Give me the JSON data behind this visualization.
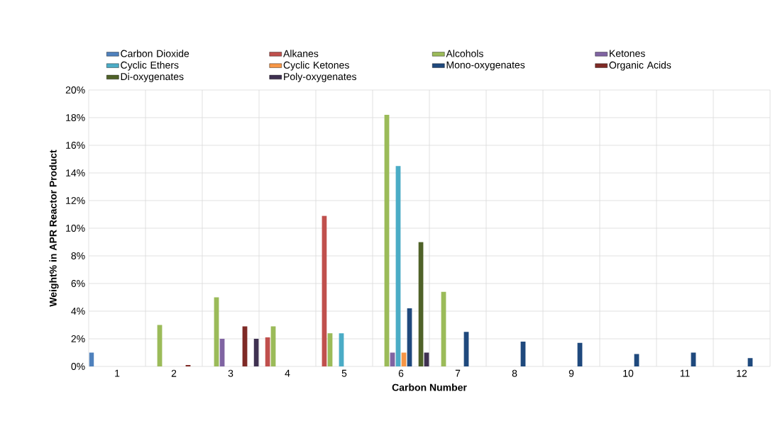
{
  "chart_data": {
    "type": "bar",
    "xlabel": "Carbon Number",
    "ylabel": "Weight% in APR Reactor Product",
    "categories": [
      "1",
      "2",
      "3",
      "4",
      "5",
      "6",
      "7",
      "8",
      "9",
      "10",
      "11",
      "12"
    ],
    "series": [
      {
        "name": "Carbon Dioxide",
        "color": "#4f81bd",
        "values": [
          1.0,
          null,
          null,
          null,
          null,
          null,
          null,
          null,
          null,
          null,
          null,
          null
        ]
      },
      {
        "name": "Alkanes",
        "color": "#c0504d",
        "values": [
          null,
          null,
          null,
          2.1,
          10.9,
          null,
          null,
          null,
          null,
          null,
          null,
          null
        ]
      },
      {
        "name": "Alcohols",
        "color": "#9bbb59",
        "values": [
          null,
          3.0,
          5.0,
          2.9,
          2.4,
          18.2,
          5.4,
          null,
          null,
          null,
          null,
          null
        ]
      },
      {
        "name": "Ketones",
        "color": "#8064a2",
        "values": [
          null,
          null,
          2.0,
          null,
          null,
          1.0,
          null,
          null,
          null,
          null,
          null,
          null
        ]
      },
      {
        "name": "Cyclic Ethers",
        "color": "#4bacc6",
        "values": [
          null,
          null,
          null,
          null,
          2.4,
          14.5,
          null,
          null,
          null,
          null,
          null,
          null
        ]
      },
      {
        "name": "Cyclic Ketones",
        "color": "#f79646",
        "values": [
          null,
          null,
          null,
          null,
          null,
          1.0,
          null,
          null,
          null,
          null,
          null,
          null
        ]
      },
      {
        "name": "Mono-oxygenates",
        "color": "#1f497d",
        "values": [
          null,
          null,
          null,
          null,
          null,
          4.2,
          2.5,
          1.8,
          1.7,
          0.9,
          1.0,
          0.6
        ]
      },
      {
        "name": "Organic Acids",
        "color": "#7f2a26",
        "values": [
          null,
          0.1,
          2.9,
          null,
          null,
          null,
          null,
          null,
          null,
          null,
          null,
          null
        ]
      },
      {
        "name": "Di-oxygenates",
        "color": "#4f6228",
        "values": [
          null,
          null,
          null,
          null,
          null,
          9.0,
          null,
          null,
          null,
          null,
          null,
          null
        ]
      },
      {
        "name": "Poly-oxygenates",
        "color": "#3f3151",
        "values": [
          null,
          null,
          2.0,
          null,
          null,
          1.0,
          null,
          null,
          null,
          null,
          null,
          null
        ]
      }
    ],
    "ylim": [
      0,
      20
    ],
    "yticks": [
      {
        "value": 0,
        "label": "0%"
      },
      {
        "value": 2,
        "label": "2%"
      },
      {
        "value": 4,
        "label": "4%"
      },
      {
        "value": 6,
        "label": "6%"
      },
      {
        "value": 8,
        "label": "8%"
      },
      {
        "value": 10,
        "label": "10%"
      },
      {
        "value": 12,
        "label": "12%"
      },
      {
        "value": 14,
        "label": "14%"
      },
      {
        "value": 16,
        "label": "16%"
      },
      {
        "value": 18,
        "label": "18%"
      },
      {
        "value": 20,
        "label": "20%"
      }
    ],
    "grid": true,
    "legend": "top"
  }
}
